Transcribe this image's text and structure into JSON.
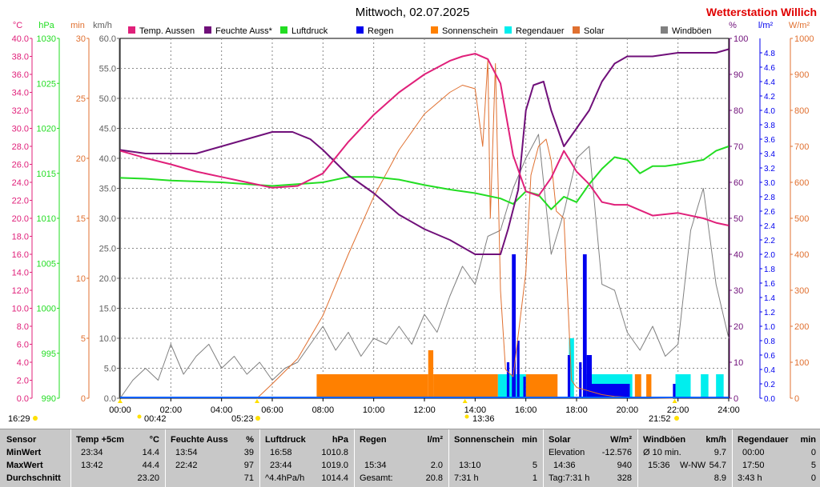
{
  "title": "Mittwoch, 02.07.2025",
  "station": "Wetterstation Willich",
  "unit_labels": {
    "celsius": "°C",
    "hpa": "hPa",
    "min": "min",
    "kmh": "km/h",
    "pct": "%",
    "lm2": "l/m²",
    "wm2": "W/m²"
  },
  "legend": [
    {
      "label": "Temp. Aussen",
      "color": "#e0207a"
    },
    {
      "label": "Feuchte Auss*",
      "color": "#70107a"
    },
    {
      "label": "Luftdruck",
      "color": "#22dd22"
    },
    {
      "label": "Regen",
      "color": "#0000ee"
    },
    {
      "label": "Sonnenschein",
      "color": "#ff8000"
    },
    {
      "label": "Regendauer",
      "color": "#00eeee"
    },
    {
      "label": "Solar",
      "color": "#e07030"
    },
    {
      "label": "Windböen",
      "color": "#808080"
    }
  ],
  "markers": {
    "sunrise": "05:23",
    "sunset": "21:52",
    "moonset": "00:42",
    "moonrise": "13:36",
    "left_time": "16:29"
  },
  "chart_data": {
    "type": "line",
    "x_ticks": [
      "00:00",
      "02:00",
      "04:00",
      "06:00",
      "08:00",
      "10:00",
      "12:00",
      "14:00",
      "16:00",
      "18:00",
      "20:00",
      "22:00",
      "24:00"
    ],
    "axes": {
      "temp": {
        "label": "°C",
        "range": [
          0,
          40
        ],
        "ticks": [
          "0.0",
          "2.0",
          "4.0",
          "6.0",
          "8.0",
          "10.0",
          "12.0",
          "14.0",
          "16.0",
          "18.0",
          "20.0",
          "22.0",
          "24.0",
          "26.0",
          "28.0",
          "30.0",
          "32.0",
          "34.0",
          "36.0",
          "38.0",
          "40.0"
        ],
        "color": "#e0207a"
      },
      "pressure": {
        "label": "hPa",
        "range": [
          990,
          1030
        ],
        "ticks": [
          "990",
          "995",
          "1000",
          "1005",
          "1010",
          "1015",
          "1020",
          "1025",
          "1030"
        ],
        "color": "#22dd22"
      },
      "minutes": {
        "label": "min",
        "range": [
          0,
          30
        ],
        "ticks": [
          "0",
          "5",
          "10",
          "15",
          "20",
          "25",
          "30"
        ],
        "color": "#e07030"
      },
      "wind": {
        "label": "km/h",
        "range": [
          0,
          60
        ],
        "ticks": [
          "0.0",
          "5.0",
          "10.0",
          "15.0",
          "20.0",
          "25.0",
          "30.0",
          "35.0",
          "40.0",
          "45.0",
          "50.0",
          "55.0",
          "60.0"
        ],
        "color": "#606060"
      },
      "humidity": {
        "label": "%",
        "range": [
          0,
          100
        ],
        "ticks": [
          "0",
          "10",
          "20",
          "30",
          "40",
          "50",
          "60",
          "70",
          "80",
          "90",
          "100"
        ],
        "color": "#70107a"
      },
      "rain": {
        "label": "l/m²",
        "range": [
          0,
          5
        ],
        "ticks": [
          "0.0",
          "0.2",
          "0.4",
          "0.6",
          "0.8",
          "1.0",
          "1.2",
          "1.4",
          "1.6",
          "1.8",
          "2.0",
          "2.2",
          "2.4",
          "2.6",
          "2.8",
          "3.0",
          "3.2",
          "3.4",
          "3.6",
          "3.8",
          "4.0",
          "4.2",
          "4.4",
          "4.6",
          "4.8"
        ],
        "color": "#0000ee"
      },
      "solar": {
        "label": "W/m²",
        "range": [
          0,
          1000
        ],
        "ticks": [
          "0",
          "100",
          "200",
          "300",
          "400",
          "500",
          "600",
          "700",
          "800",
          "900",
          "1000"
        ],
        "color": "#e07030"
      }
    },
    "series": [
      {
        "name": "Temp. Aussen",
        "axis": "temp",
        "color": "#e0207a",
        "x": [
          0,
          1,
          2,
          3,
          4,
          5,
          5.5,
          6,
          7,
          8,
          9,
          10,
          11,
          12,
          13,
          13.5,
          14,
          14.5,
          15,
          15.5,
          16,
          16.5,
          17,
          17.5,
          18,
          18.5,
          19,
          19.5,
          20,
          21,
          22,
          23,
          23.5,
          24
        ],
        "y": [
          27.5,
          26.7,
          26.0,
          25.2,
          24.6,
          24.0,
          23.7,
          23.4,
          23.6,
          25.0,
          28.5,
          31.5,
          34.0,
          36.0,
          37.5,
          38.0,
          38.3,
          37.7,
          35.0,
          27.0,
          23.0,
          22.5,
          24.5,
          27.5,
          25.2,
          23.8,
          21.8,
          21.5,
          21.5,
          20.3,
          20.6,
          20.0,
          19.5,
          19.2
        ]
      },
      {
        "name": "Feuchte Auss*",
        "axis": "humidity",
        "color": "#70107a",
        "x": [
          0,
          1,
          2,
          3,
          4,
          5,
          6,
          6.8,
          7.5,
          8,
          9,
          10,
          11,
          12,
          13,
          14,
          14.5,
          15,
          15.3,
          15.7,
          16,
          16.3,
          16.7,
          17,
          17.5,
          18,
          18.5,
          19,
          19.5,
          20,
          21,
          22,
          23,
          23.5,
          24
        ],
        "y": [
          69,
          68,
          68,
          68,
          70,
          72,
          74,
          74,
          72,
          69,
          62,
          57,
          51,
          47,
          44,
          40,
          40,
          40,
          47,
          58,
          80,
          87,
          88,
          80,
          70,
          75,
          80,
          88,
          93,
          95,
          95,
          96,
          96,
          96,
          97
        ]
      },
      {
        "name": "Luftdruck",
        "axis": "pressure",
        "color": "#22dd22",
        "x": [
          0,
          1,
          2,
          3,
          4,
          5,
          6,
          7,
          8,
          9,
          10,
          11,
          12,
          13,
          14,
          15,
          15.5,
          16,
          16.5,
          17,
          17.5,
          18,
          18.5,
          19,
          19.5,
          20,
          20.5,
          21,
          21.5,
          22,
          23,
          23.5,
          24
        ],
        "y": [
          1014.5,
          1014.4,
          1014.2,
          1014.1,
          1014.0,
          1013.8,
          1013.6,
          1013.8,
          1014.0,
          1014.6,
          1014.6,
          1014.3,
          1013.7,
          1013.2,
          1012.8,
          1012.2,
          1011.6,
          1013.0,
          1012.6,
          1011.0,
          1012.4,
          1011.8,
          1013.8,
          1015.5,
          1016.8,
          1016.5,
          1015.0,
          1015.8,
          1015.8,
          1016.0,
          1016.5,
          1017.5,
          1018.0
        ]
      },
      {
        "name": "Solar",
        "axis": "solar",
        "color": "#e07030",
        "x": [
          5.4,
          6,
          7,
          8,
          9,
          10,
          11,
          12,
          13,
          13.5,
          14,
          14.3,
          14.5,
          14.6,
          14.8,
          15,
          15.2,
          15.5,
          16,
          16.2,
          16.5,
          16.8,
          17,
          17.2,
          17.5,
          17.8,
          18,
          18.5,
          19,
          19.5,
          20,
          21,
          21.8
        ],
        "y": [
          0,
          40,
          110,
          230,
          400,
          560,
          690,
          790,
          850,
          870,
          860,
          700,
          940,
          500,
          930,
          300,
          80,
          60,
          350,
          620,
          700,
          720,
          660,
          520,
          500,
          50,
          30,
          20,
          10,
          5,
          3,
          1,
          0
        ]
      },
      {
        "name": "Windböen",
        "axis": "wind",
        "color": "#808080",
        "x": [
          0,
          0.5,
          1,
          1.5,
          2,
          2.5,
          3,
          3.5,
          4,
          4.5,
          5,
          5.5,
          6,
          6.5,
          7,
          7.5,
          8,
          8.5,
          9,
          9.5,
          10,
          10.5,
          11,
          11.5,
          12,
          12.5,
          13,
          13.5,
          14,
          14.5,
          15,
          15.5,
          16,
          16.5,
          17,
          17.5,
          18,
          18.5,
          19,
          19.5,
          20,
          20.5,
          21,
          21.5,
          22,
          22.5,
          23,
          23.5,
          24
        ],
        "y": [
          0,
          3,
          5,
          3,
          9,
          4,
          7,
          9,
          5,
          7,
          4,
          6,
          3,
          5,
          6,
          9,
          12,
          8,
          11,
          7,
          10,
          9,
          12,
          9,
          14,
          11,
          17,
          22,
          19,
          27,
          28,
          35,
          40,
          44,
          24,
          31,
          40,
          42,
          19,
          18,
          11,
          8,
          12,
          7,
          9,
          28,
          35,
          19,
          10
        ]
      }
    ],
    "bars": [
      {
        "name": "Sonnenschein",
        "axis": "minutes",
        "color": "#ff8000",
        "segments": [
          {
            "from": 7.75,
            "to": 12.15,
            "value": 2
          },
          {
            "from": 12.15,
            "to": 12.35,
            "value": 4
          },
          {
            "from": 12.35,
            "to": 14.9,
            "value": 2
          },
          {
            "from": 16.0,
            "to": 17.25,
            "value": 2
          },
          {
            "from": 20.3,
            "to": 20.55,
            "value": 2
          },
          {
            "from": 20.75,
            "to": 20.95,
            "value": 2
          }
        ]
      },
      {
        "name": "Regendauer",
        "axis": "minutes",
        "color": "#00eeee",
        "segments": [
          {
            "from": 14.9,
            "to": 16.0,
            "value": 2
          },
          {
            "from": 17.7,
            "to": 17.9,
            "value": 5
          },
          {
            "from": 18.4,
            "to": 20.2,
            "value": 2
          },
          {
            "from": 21.9,
            "to": 22.5,
            "value": 2
          },
          {
            "from": 22.9,
            "to": 23.2,
            "value": 2
          },
          {
            "from": 23.5,
            "to": 23.8,
            "value": 2
          }
        ]
      },
      {
        "name": "Regen",
        "axis": "rain",
        "color": "#0000ee",
        "segments": [
          {
            "from": 15.25,
            "to": 15.35,
            "value": 0.5
          },
          {
            "from": 15.45,
            "to": 15.6,
            "value": 2.0
          },
          {
            "from": 15.65,
            "to": 15.75,
            "value": 0.8
          },
          {
            "from": 15.9,
            "to": 16.0,
            "value": 0.3
          },
          {
            "from": 17.65,
            "to": 17.75,
            "value": 0.6
          },
          {
            "from": 18.1,
            "to": 18.2,
            "value": 0.5
          },
          {
            "from": 18.25,
            "to": 18.4,
            "value": 2.0
          },
          {
            "from": 18.4,
            "to": 18.6,
            "value": 0.6
          },
          {
            "from": 18.6,
            "to": 20.1,
            "value": 0.2
          },
          {
            "from": 21.8,
            "to": 21.9,
            "value": 0.2
          }
        ]
      }
    ]
  },
  "stats": {
    "row_labels": [
      "Sensor",
      "MinWert",
      "MaxWert",
      "Durchschnitt"
    ],
    "temp": {
      "title": "Temp +5cm",
      "unit": "°C",
      "min_t": "23:34",
      "min_v": "14.4",
      "max_t": "13:42",
      "max_v": "44.4",
      "avg": "23.20"
    },
    "feuchte": {
      "title": "Feuchte Auss",
      "unit": "%",
      "min_t": "13:54",
      "min_v": "39",
      "max_t": "22:42",
      "max_v": "97",
      "avg": "71"
    },
    "luftdruck": {
      "title": "Luftdruck",
      "unit": "hPa",
      "min_t": "16:58",
      "min_v": "1010.8",
      "max_t": "23:44",
      "max_v": "1019.0",
      "avg_t": "^4.4hPa/h",
      "avg": "1014.4"
    },
    "regen": {
      "title": "Regen",
      "unit": "l/m²",
      "max_t": "15:34",
      "max_v": "2.0",
      "avg_t": "Gesamt:",
      "avg": "20.8"
    },
    "sonne": {
      "title": "Sonnenschein",
      "unit": "min",
      "max_t": "13:10",
      "max_v": "5",
      "avg_t": "7:31 h",
      "avg": "1"
    },
    "solar": {
      "title": "Solar",
      "unit": "W/m²",
      "min_t": "Elevation",
      "min_v": "-12.576",
      "max_t": "14:36",
      "max_v": "940",
      "avg_t": "Tag:7:31 h",
      "avg": "328"
    },
    "wind": {
      "title": "Windböen",
      "unit": "km/h",
      "min_t": "Ø 10 min.",
      "min_v": "9.7",
      "max_t": "15:36",
      "max_d": "W-NW",
      "max_v": "54.7",
      "avg": "8.9"
    },
    "regendauer": {
      "title": "Regendauer",
      "unit": "min",
      "min_t": "00:00",
      "min_v": "0",
      "max_t": "17:50",
      "max_v": "5",
      "avg_t": "3:43 h",
      "avg": "0"
    }
  }
}
